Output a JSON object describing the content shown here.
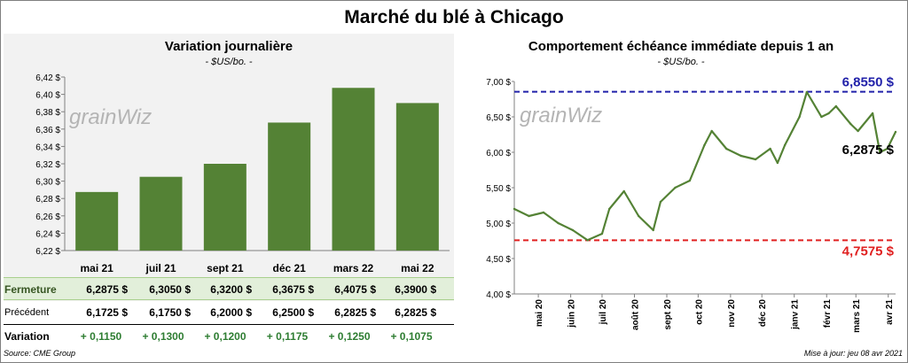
{
  "title": "Marché du blé à Chicago",
  "left_panel": {
    "title": "Variation  journalière",
    "subtitle": "- $US/bo. -",
    "watermark": "grainWiz"
  },
  "right_panel": {
    "title": "Comportement  échéance immédiate depuis 1 an",
    "subtitle": "- $US/bo. -",
    "watermark": "grainWiz",
    "high_label": "6,8550 $",
    "low_label": "4,7575 $",
    "last_label": "6,2875 $"
  },
  "table": {
    "row_labels": {
      "fermeture": "Fermeture",
      "precedent": "Précédent",
      "variation": "Variation"
    },
    "fermeture": [
      "6,2875  $",
      "6,3050  $",
      "6,3200  $",
      "6,3675  $",
      "6,4075  $",
      "6,3900  $"
    ],
    "precedent": [
      "6,1725  $",
      "6,1750  $",
      "6,2000  $",
      "6,2500  $",
      "6,2825  $",
      "6,2825  $"
    ],
    "variation": [
      "+ 0,1150",
      "+ 0,1300",
      "+ 0,1200",
      "+ 0,1175",
      "+ 0,1250",
      "+ 0,1075"
    ]
  },
  "footer": {
    "source": "Source: CME Group",
    "update": "Mise à jour: jeu 08 avr 2021"
  },
  "colors": {
    "bar": "#548235",
    "line": "#548235",
    "high": "#2222aa",
    "low": "#e02020",
    "fermeture_bg": "#e2efda"
  },
  "chart_data": [
    {
      "type": "bar",
      "title": "Variation  journalière",
      "subtitle": "- $US/bo. -",
      "categories": [
        "mai 21",
        "juil 21",
        "sept 21",
        "déc 21",
        "mars 22",
        "mai 22"
      ],
      "values": [
        6.2875,
        6.305,
        6.32,
        6.3675,
        6.4075,
        6.39
      ],
      "ylim": [
        6.22,
        6.42
      ],
      "yticks": [
        "6,22 $",
        "6,24 $",
        "6,26 $",
        "6,28 $",
        "6,30 $",
        "6,32 $",
        "6,34 $",
        "6,36 $",
        "6,38 $",
        "6,40 $",
        "6,42 $"
      ],
      "grid": false
    },
    {
      "type": "line",
      "title": "Comportement  échéance immédiate depuis 1 an",
      "subtitle": "- $US/bo. -",
      "x": [
        "2020-04-08",
        "2020-04-22",
        "2020-05-06",
        "2020-05-20",
        "2020-06-03",
        "2020-06-17",
        "2020-07-01",
        "2020-07-08",
        "2020-07-22",
        "2020-08-05",
        "2020-08-19",
        "2020-08-26",
        "2020-09-09",
        "2020-09-23",
        "2020-10-07",
        "2020-10-14",
        "2020-10-28",
        "2020-11-11",
        "2020-11-25",
        "2020-12-09",
        "2020-12-16",
        "2020-12-23",
        "2021-01-06",
        "2021-01-13",
        "2021-01-27",
        "2021-02-03",
        "2021-02-10",
        "2021-02-24",
        "2021-03-03",
        "2021-03-17",
        "2021-03-24",
        "2021-03-31",
        "2021-04-08"
      ],
      "y": [
        5.2,
        5.1,
        5.15,
        5.0,
        4.9,
        4.76,
        4.85,
        5.2,
        5.45,
        5.1,
        4.9,
        5.3,
        5.5,
        5.6,
        6.1,
        6.3,
        6.05,
        5.95,
        5.9,
        6.05,
        5.85,
        6.1,
        6.5,
        6.85,
        6.5,
        6.55,
        6.65,
        6.4,
        6.3,
        6.55,
        6.0,
        6.05,
        6.2875
      ],
      "ylim": [
        4.0,
        7.0
      ],
      "yticks": [
        "4,00 $",
        "4,50 $",
        "5,00 $",
        "5,50 $",
        "6,00 $",
        "6,50 $",
        "7,00 $"
      ],
      "xticks": [
        "mai 20",
        "juin 20",
        "juil 20",
        "août 20",
        "sept 20",
        "oct 20",
        "nov 20",
        "déc 20",
        "janv 21",
        "févr 21",
        "mars 21",
        "avr 21"
      ],
      "high": 6.855,
      "low": 4.7575,
      "last": 6.2875,
      "grid": false
    }
  ]
}
